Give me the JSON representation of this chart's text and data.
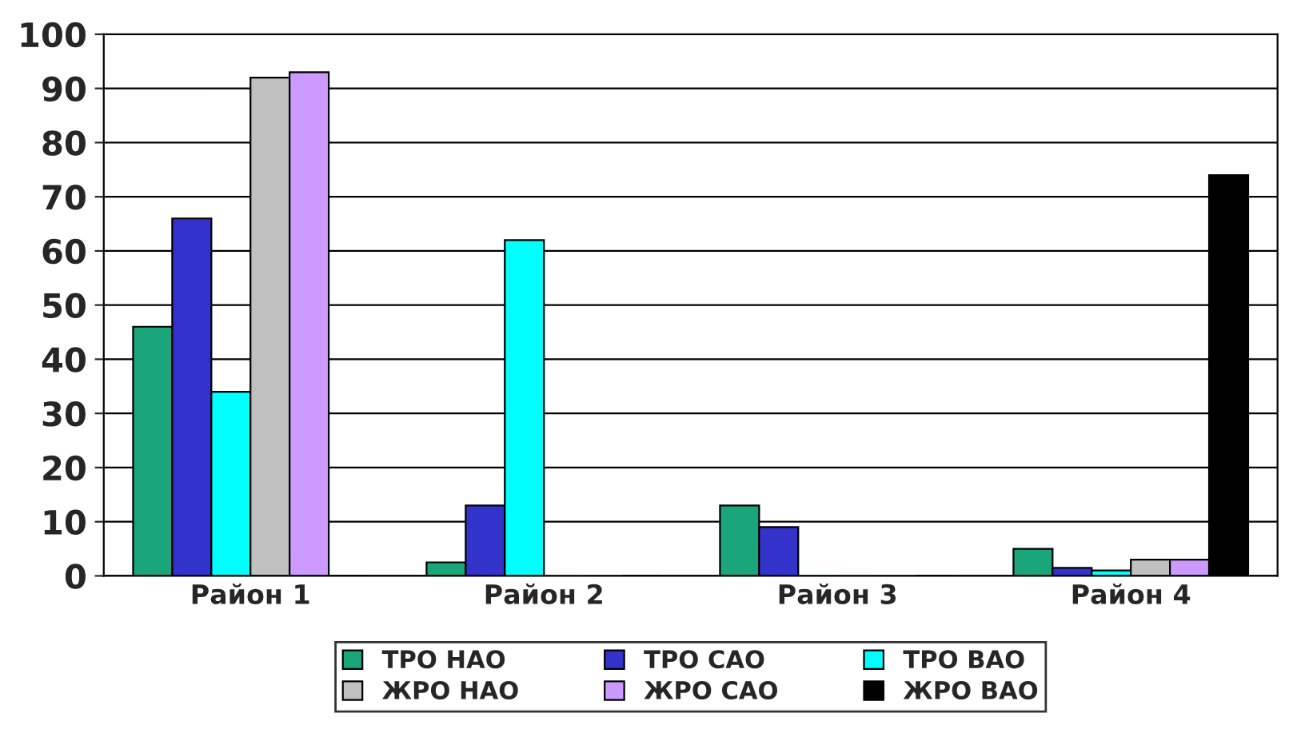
{
  "chart_data": {
    "type": "bar",
    "categories": [
      "Район 1",
      "Район 2",
      "Район 3",
      "Район 4"
    ],
    "series": [
      {
        "name": "ТРО НАО",
        "color": "#1aa57a",
        "values": [
          46,
          2.5,
          13,
          5
        ]
      },
      {
        "name": "ТРО САО",
        "color": "#3333cc",
        "values": [
          66,
          13,
          9,
          1.5
        ]
      },
      {
        "name": "ТРО ВАО",
        "color": "#00ffff",
        "values": [
          34,
          62,
          0,
          1
        ]
      },
      {
        "name": "ЖРО НАО",
        "color": "#c0c0c0",
        "values": [
          92,
          0,
          0,
          3
        ]
      },
      {
        "name": "ЖРО САО",
        "color": "#cc99ff",
        "values": [
          93,
          0,
          0,
          3
        ]
      },
      {
        "name": "ЖРО ВАО",
        "color": "#000000",
        "values": [
          0,
          0,
          0,
          74
        ]
      }
    ],
    "ylim": [
      0,
      100
    ],
    "yticks": [
      0,
      10,
      20,
      30,
      40,
      50,
      60,
      70,
      80,
      90,
      100
    ],
    "grid": "y",
    "legend": "bottom"
  }
}
